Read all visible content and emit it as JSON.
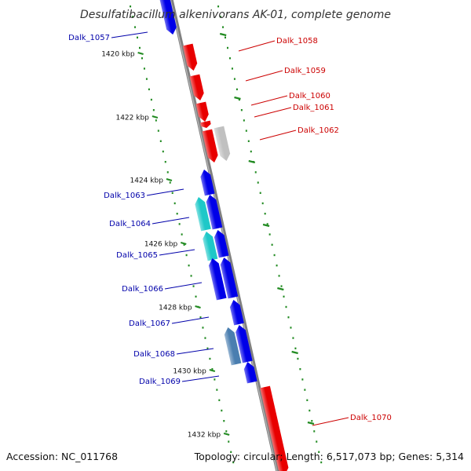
{
  "title": "Desulfatibacillum alkenivorans AK-01, complete genome",
  "accession": "Accession: NC_011768",
  "summary": "Topology: circular; Length: 6,517,073 bp; Genes: 5,314",
  "colors": {
    "forward": "#e80000",
    "forward_light": "#ff5050",
    "reverse": "#0000e8",
    "reverse_light": "#5050ff",
    "cyan": "#1ec8c8",
    "steel": "#4a7eb0",
    "pseudo": "#c0c0c0",
    "backbone": "#808080",
    "tick": "#228b22",
    "label_forward": "#cc0000",
    "label_reverse": "#0000aa"
  },
  "ticks": [
    {
      "label": "1420 kbp"
    },
    {
      "label": "1422 kbp"
    },
    {
      "label": "1424 kbp"
    },
    {
      "label": "1426 kbp"
    },
    {
      "label": "1428 kbp"
    },
    {
      "label": "1430 kbp"
    },
    {
      "label": "1432 kbp"
    }
  ],
  "genes": [
    {
      "name": "Dalk_1057",
      "strand": "reverse",
      "color": "reverse"
    },
    {
      "name": "Dalk_1058",
      "strand": "forward",
      "color": "forward"
    },
    {
      "name": "Dalk_1059",
      "strand": "forward",
      "color": "forward"
    },
    {
      "name": "Dalk_1060",
      "strand": "forward",
      "color": "forward"
    },
    {
      "name": "Dalk_1061",
      "strand": "forward",
      "color": "forward"
    },
    {
      "name": "Dalk_1062",
      "strand": "forward",
      "color": "forward"
    },
    {
      "name": "Dalk_1063",
      "strand": "reverse",
      "color": "reverse"
    },
    {
      "name": "Dalk_1064",
      "strand": "reverse",
      "color": "cyan"
    },
    {
      "name": "Dalk_1065",
      "strand": "reverse",
      "color": "cyan"
    },
    {
      "name": "Dalk_1066",
      "strand": "reverse",
      "color": "reverse"
    },
    {
      "name": "Dalk_1067",
      "strand": "reverse",
      "color": "reverse"
    },
    {
      "name": "Dalk_1068",
      "strand": "reverse",
      "color": "steel"
    },
    {
      "name": "Dalk_1069",
      "strand": "reverse",
      "color": "reverse"
    },
    {
      "name": "Dalk_1070",
      "strand": "forward",
      "color": "forward"
    }
  ],
  "extra_features": [
    {
      "color": "pseudo"
    },
    {
      "color": "reverse"
    },
    {
      "color": "reverse"
    },
    {
      "color": "reverse"
    },
    {
      "color": "reverse"
    },
    {
      "color": "reverse"
    }
  ]
}
